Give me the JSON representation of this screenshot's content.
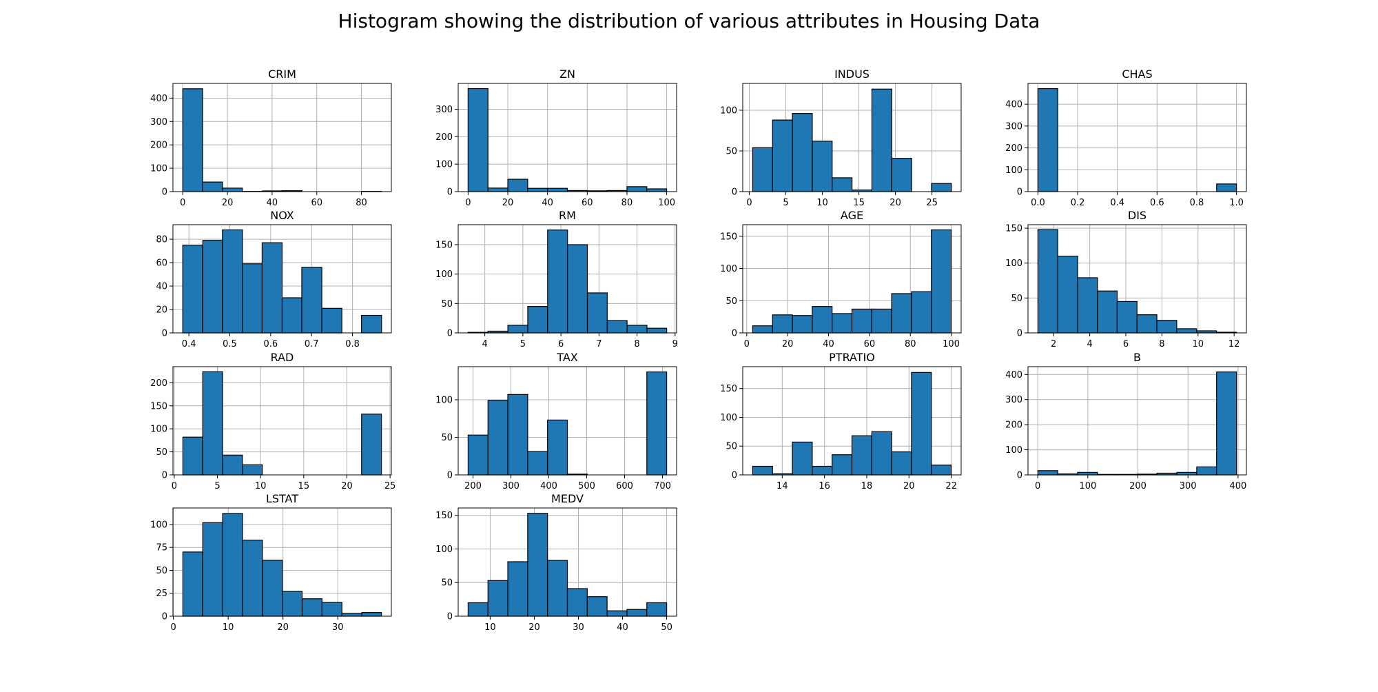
{
  "title": "Histogram showing the distribution of various attributes in Housing Data",
  "colors": {
    "bar_fill": "#1f77b4",
    "bar_edge": "#000000",
    "grid": "#b0b0b0",
    "axes": "#000000"
  },
  "chart_data": [
    {
      "type": "bar",
      "title": "CRIM",
      "grid": true,
      "bin_edges": [
        0.006,
        8.9,
        17.8,
        26.7,
        35.6,
        44.5,
        53.4,
        62.3,
        71.2,
        80.1,
        89.0
      ],
      "values": [
        440,
        41,
        15,
        1,
        3,
        4,
        0,
        0,
        0,
        1
      ],
      "xlim": [
        -4.4,
        93.4
      ],
      "ylim": [
        0,
        463
      ],
      "xticks": [
        0,
        20,
        40,
        60,
        80
      ],
      "xtick_labels": [
        "0",
        "20",
        "40",
        "60",
        "80"
      ],
      "yticks": [
        0,
        100,
        200,
        300,
        400
      ],
      "ytick_labels": [
        "0",
        "100",
        "200",
        "300",
        "400"
      ]
    },
    {
      "type": "bar",
      "title": "ZN",
      "grid": true,
      "bin_edges": [
        0,
        10,
        20,
        30,
        40,
        50,
        60,
        70,
        80,
        90,
        100
      ],
      "values": [
        375,
        13,
        45,
        12,
        12,
        4,
        3,
        4,
        18,
        10
      ],
      "xlim": [
        -5,
        105
      ],
      "ylim": [
        0,
        394
      ],
      "xticks": [
        0,
        20,
        40,
        60,
        80,
        100
      ],
      "xtick_labels": [
        "0",
        "20",
        "40",
        "60",
        "80",
        "100"
      ],
      "yticks": [
        0,
        100,
        200,
        300
      ],
      "ytick_labels": [
        "0",
        "100",
        "200",
        "300"
      ]
    },
    {
      "type": "bar",
      "title": "INDUS",
      "grid": true,
      "bin_edges": [
        0.46,
        3.18,
        5.9,
        8.62,
        11.34,
        14.06,
        16.78,
        19.5,
        22.22,
        24.94,
        27.66
      ],
      "values": [
        54,
        88,
        96,
        62,
        17,
        2,
        126,
        41,
        0,
        10
      ],
      "xlim": [
        -0.9,
        29.0
      ],
      "ylim": [
        0,
        133
      ],
      "xticks": [
        0,
        5,
        10,
        15,
        20,
        25
      ],
      "xtick_labels": [
        "0",
        "5",
        "10",
        "15",
        "20",
        "25"
      ],
      "yticks": [
        0,
        50,
        100
      ],
      "ytick_labels": [
        "0",
        "50",
        "100"
      ]
    },
    {
      "type": "bar",
      "title": "CHAS",
      "grid": true,
      "bin_edges": [
        0,
        0.1,
        0.2,
        0.3,
        0.4,
        0.5,
        0.6,
        0.7,
        0.8,
        0.9,
        1.0
      ],
      "values": [
        471,
        0,
        0,
        0,
        0,
        0,
        0,
        0,
        0,
        35
      ],
      "xlim": [
        -0.05,
        1.05
      ],
      "ylim": [
        0,
        495
      ],
      "xticks": [
        0,
        0.2,
        0.4,
        0.6,
        0.8,
        1.0
      ],
      "xtick_labels": [
        "0.0",
        "0.2",
        "0.4",
        "0.6",
        "0.8",
        "1.0"
      ],
      "yticks": [
        0,
        100,
        200,
        300,
        400
      ],
      "ytick_labels": [
        "0",
        "100",
        "200",
        "300",
        "400"
      ]
    },
    {
      "type": "bar",
      "title": "NOX",
      "grid": true,
      "bin_edges": [
        0.385,
        0.434,
        0.482,
        0.531,
        0.579,
        0.628,
        0.676,
        0.725,
        0.774,
        0.822,
        0.871
      ],
      "values": [
        75,
        79,
        88,
        59,
        77,
        30,
        56,
        21,
        0,
        15
      ],
      "xlim": [
        0.361,
        0.895
      ],
      "ylim": [
        0,
        92.4
      ],
      "xticks": [
        0.4,
        0.5,
        0.6,
        0.7,
        0.8
      ],
      "xtick_labels": [
        "0.4",
        "0.5",
        "0.6",
        "0.7",
        "0.8"
      ],
      "yticks": [
        0,
        20,
        40,
        60,
        80
      ],
      "ytick_labels": [
        "0",
        "20",
        "40",
        "60",
        "80"
      ]
    },
    {
      "type": "bar",
      "title": "RM",
      "grid": true,
      "bin_edges": [
        3.561,
        4.083,
        4.606,
        5.128,
        5.65,
        6.173,
        6.695,
        7.217,
        7.739,
        8.262,
        8.78
      ],
      "values": [
        1,
        3,
        13,
        45,
        175,
        150,
        68,
        21,
        13,
        8
      ],
      "xlim": [
        3.3,
        9.04
      ],
      "ylim": [
        0,
        184
      ],
      "xticks": [
        4,
        5,
        6,
        7,
        8,
        9
      ],
      "xtick_labels": [
        "4",
        "5",
        "6",
        "7",
        "8",
        "9"
      ],
      "yticks": [
        0,
        50,
        100,
        150
      ],
      "ytick_labels": [
        "0",
        "50",
        "100",
        "150"
      ]
    },
    {
      "type": "bar",
      "title": "AGE",
      "grid": true,
      "bin_edges": [
        2.9,
        12.61,
        22.32,
        32.03,
        41.74,
        51.45,
        61.16,
        70.87,
        80.58,
        90.29,
        100
      ],
      "values": [
        11,
        28,
        27,
        41,
        30,
        37,
        37,
        61,
        64,
        160
      ],
      "xlim": [
        -1.96,
        104.86
      ],
      "ylim": [
        0,
        168
      ],
      "xticks": [
        0,
        20,
        40,
        60,
        80,
        100
      ],
      "xtick_labels": [
        "0",
        "20",
        "40",
        "60",
        "80",
        "100"
      ],
      "yticks": [
        0,
        50,
        100,
        150
      ],
      "ytick_labels": [
        "0",
        "50",
        "100",
        "150"
      ]
    },
    {
      "type": "bar",
      "title": "DIS",
      "grid": true,
      "bin_edges": [
        1.13,
        2.23,
        3.33,
        4.43,
        5.52,
        6.62,
        7.72,
        8.82,
        9.92,
        11.02,
        12.13
      ],
      "values": [
        148,
        110,
        79,
        60,
        45,
        26,
        18,
        6,
        3,
        1
      ],
      "xlim": [
        0.58,
        12.68
      ],
      "ylim": [
        0,
        155
      ],
      "xticks": [
        2,
        4,
        6,
        8,
        10,
        12
      ],
      "xtick_labels": [
        "2",
        "4",
        "6",
        "8",
        "10",
        "12"
      ],
      "yticks": [
        0,
        50,
        100,
        150
      ],
      "ytick_labels": [
        "0",
        "50",
        "100",
        "150"
      ]
    },
    {
      "type": "bar",
      "title": "RAD",
      "grid": true,
      "bin_edges": [
        1,
        3.3,
        5.6,
        7.9,
        10.2,
        12.5,
        14.8,
        17.1,
        19.4,
        21.7,
        24
      ],
      "values": [
        82,
        224,
        43,
        22,
        0,
        0,
        0,
        0,
        0,
        132
      ],
      "xlim": [
        -0.15,
        25.15
      ],
      "ylim": [
        0,
        235
      ],
      "xticks": [
        0,
        5,
        10,
        15,
        20,
        25
      ],
      "xtick_labels": [
        "0",
        "5",
        "10",
        "15",
        "20",
        "25"
      ],
      "yticks": [
        0,
        50,
        100,
        150,
        200
      ],
      "ytick_labels": [
        "0",
        "50",
        "100",
        "150",
        "200"
      ]
    },
    {
      "type": "bar",
      "title": "TAX",
      "grid": true,
      "bin_edges": [
        187,
        239.4,
        291.8,
        344.2,
        396.6,
        449,
        501.4,
        553.8,
        606.2,
        658.6,
        711
      ],
      "values": [
        53,
        99,
        107,
        31,
        73,
        1,
        0,
        0,
        0,
        137
      ],
      "xlim": [
        160.8,
        737.2
      ],
      "ylim": [
        0,
        144
      ],
      "xticks": [
        200,
        300,
        400,
        500,
        600,
        700
      ],
      "xtick_labels": [
        "200",
        "300",
        "400",
        "500",
        "600",
        "700"
      ],
      "yticks": [
        0,
        50,
        100
      ],
      "ytick_labels": [
        "0",
        "50",
        "100"
      ]
    },
    {
      "type": "bar",
      "title": "PTRATIO",
      "grid": true,
      "bin_edges": [
        12.6,
        13.54,
        14.48,
        15.42,
        16.36,
        17.3,
        18.24,
        19.18,
        20.12,
        21.06,
        22.0
      ],
      "values": [
        15,
        2,
        57,
        15,
        35,
        68,
        75,
        40,
        178,
        17
      ],
      "xlim": [
        12.13,
        22.47
      ],
      "ylim": [
        0,
        188
      ],
      "xticks": [
        14,
        16,
        18,
        20,
        22
      ],
      "xtick_labels": [
        "14",
        "16",
        "18",
        "20",
        "22"
      ],
      "yticks": [
        0,
        50,
        100,
        150
      ],
      "ytick_labels": [
        "0",
        "50",
        "100",
        "150"
      ]
    },
    {
      "type": "bar",
      "title": "B",
      "grid": true,
      "bin_edges": [
        0.32,
        39.96,
        79.61,
        119.26,
        158.91,
        198.56,
        238.2,
        277.85,
        317.5,
        357.15,
        396.9
      ],
      "values": [
        17,
        4,
        10,
        2,
        2,
        3,
        7,
        10,
        32,
        410
      ],
      "xlim": [
        -19.5,
        416.7
      ],
      "ylim": [
        0,
        431
      ],
      "xticks": [
        0,
        100,
        200,
        300,
        400
      ],
      "xtick_labels": [
        "0",
        "100",
        "200",
        "300",
        "400"
      ],
      "yticks": [
        0,
        100,
        200,
        300,
        400
      ],
      "ytick_labels": [
        "0",
        "100",
        "200",
        "300",
        "400"
      ]
    },
    {
      "type": "bar",
      "title": "LSTAT",
      "grid": true,
      "bin_edges": [
        1.73,
        5.36,
        8.99,
        12.62,
        16.25,
        19.88,
        23.5,
        27.13,
        30.76,
        34.39,
        37.97
      ],
      "values": [
        70,
        102,
        112,
        83,
        61,
        27,
        19,
        15,
        3,
        4
      ],
      "xlim": [
        -0.08,
        39.78
      ],
      "ylim": [
        0,
        118
      ],
      "xticks": [
        0,
        10,
        20,
        30
      ],
      "xtick_labels": [
        "0",
        "10",
        "20",
        "30"
      ],
      "yticks": [
        0,
        25,
        50,
        75,
        100
      ],
      "ytick_labels": [
        "0",
        "25",
        "50",
        "75",
        "100"
      ]
    },
    {
      "type": "bar",
      "title": "MEDV",
      "grid": true,
      "bin_edges": [
        5,
        9.5,
        14,
        18.5,
        23,
        27.5,
        32,
        36.5,
        41,
        45.5,
        50
      ],
      "values": [
        20,
        53,
        81,
        153,
        83,
        41,
        29,
        8,
        10,
        20
      ],
      "xlim": [
        2.75,
        52.25
      ],
      "ylim": [
        0,
        161
      ],
      "xticks": [
        10,
        20,
        30,
        40,
        50
      ],
      "xtick_labels": [
        "10",
        "20",
        "30",
        "40",
        "50"
      ],
      "yticks": [
        0,
        50,
        100,
        150
      ],
      "ytick_labels": [
        "0",
        "50",
        "100",
        "150"
      ]
    }
  ]
}
